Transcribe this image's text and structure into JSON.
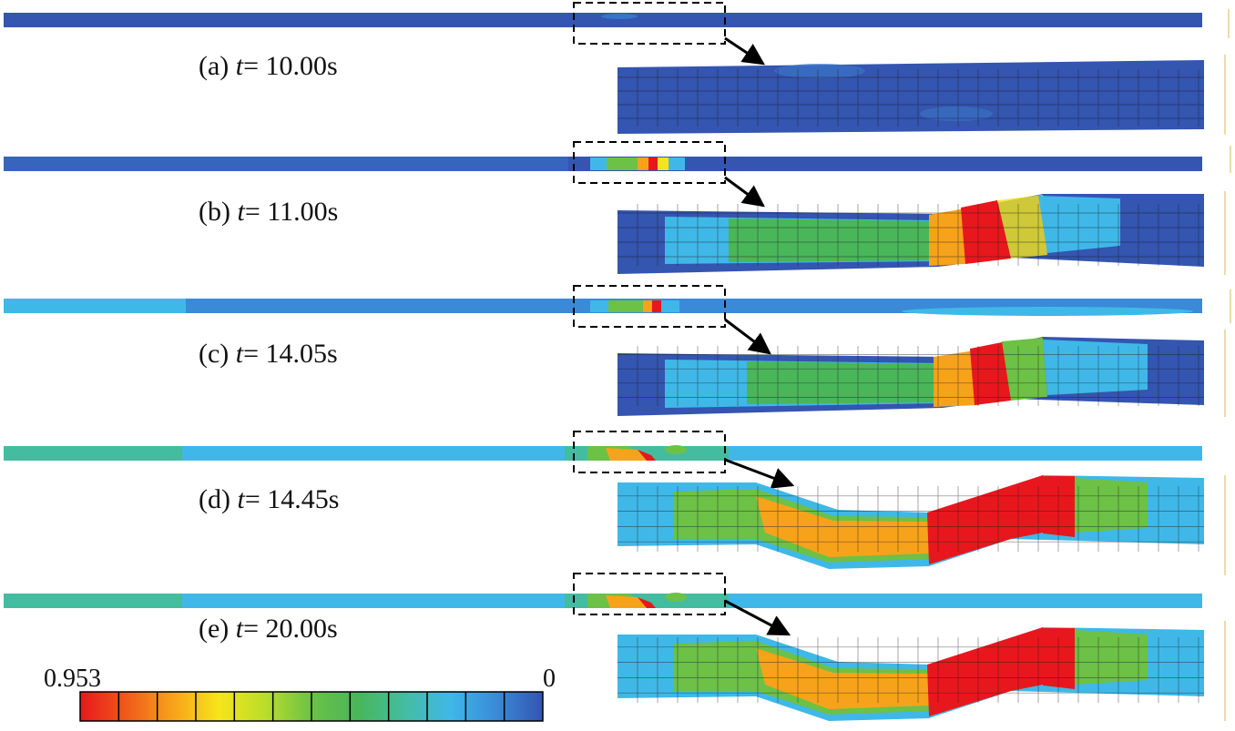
{
  "panels": [
    {
      "prefix": "(a) ",
      "var": "t",
      "value": "= 10.00s",
      "intensity": 0.0
    },
    {
      "prefix": "(b) ",
      "var": "t",
      "value": "= 11.00s",
      "intensity": 0.8
    },
    {
      "prefix": "(c) ",
      "var": "t",
      "value": "= 14.05s",
      "intensity": 0.85
    },
    {
      "prefix": "(d) ",
      "var": "t",
      "value": "= 14.45s",
      "intensity": 1.0
    },
    {
      "prefix": "(e) ",
      "var": "t",
      "value": "= 20.00s",
      "intensity": 1.0
    }
  ],
  "legend": {
    "max_label": "0.953",
    "min_label": "0",
    "max_value": 0.953,
    "min_value": 0,
    "color_stops": [
      "#e8171d",
      "#f05a1a",
      "#f7a21b",
      "#f6e51b",
      "#b9de2a",
      "#6cc146",
      "#49b65a",
      "#44bca0",
      "#3fb8e8",
      "#3a8ad8",
      "#3455b0"
    ]
  },
  "colors": {
    "frame": "#000000",
    "arrow": "#000000",
    "mesh": "#1a1a1a"
  }
}
